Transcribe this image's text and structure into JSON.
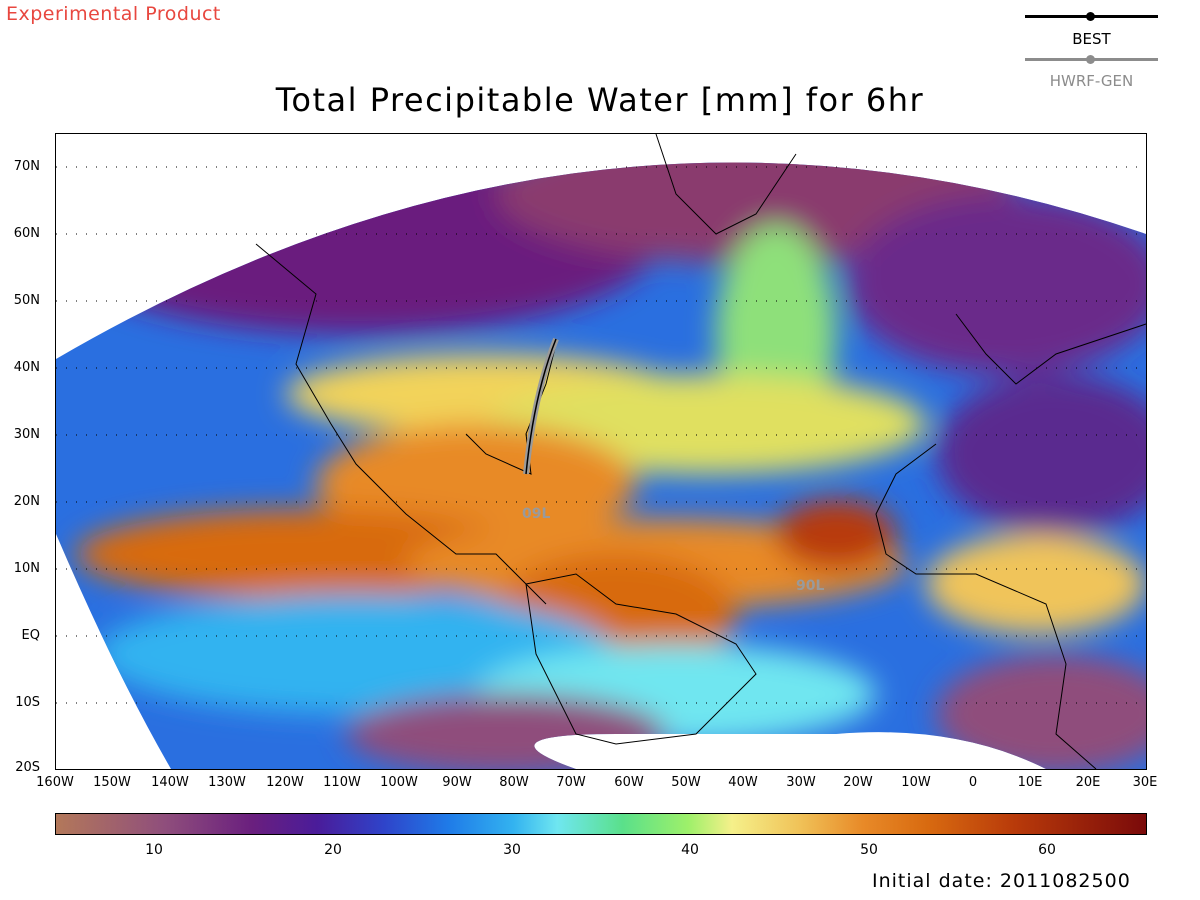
{
  "header": {
    "experimental": "Experimental Product",
    "title": "Total Precipitable Water [mm] for 6hr"
  },
  "legend": {
    "best": "BEST",
    "hwrf": "HWRF-GEN",
    "best_color": "#000000",
    "hwrf_color": "#8c8c8c"
  },
  "map": {
    "lat_labels": [
      "70N",
      "60N",
      "50N",
      "40N",
      "30N",
      "20N",
      "10N",
      "EQ",
      "10S",
      "20S"
    ],
    "lon_labels": [
      "160W",
      "150W",
      "140W",
      "130W",
      "120W",
      "110W",
      "100W",
      "90W",
      "80W",
      "70W",
      "60W",
      "50W",
      "40W",
      "30W",
      "20W",
      "10W",
      "0",
      "10E",
      "20E",
      "30E"
    ],
    "storms": [
      {
        "label": "09L",
        "lon": -76,
        "lat": 20
      },
      {
        "label": "90L",
        "lon": -30,
        "lat": 8
      }
    ],
    "track_color": "#9a9a9a"
  },
  "colorbar": {
    "ticks": [
      "10",
      "20",
      "30",
      "40",
      "50",
      "60"
    ],
    "range": [
      4,
      66
    ]
  },
  "footer": {
    "initial_date": "Initial date: 2011082500"
  }
}
